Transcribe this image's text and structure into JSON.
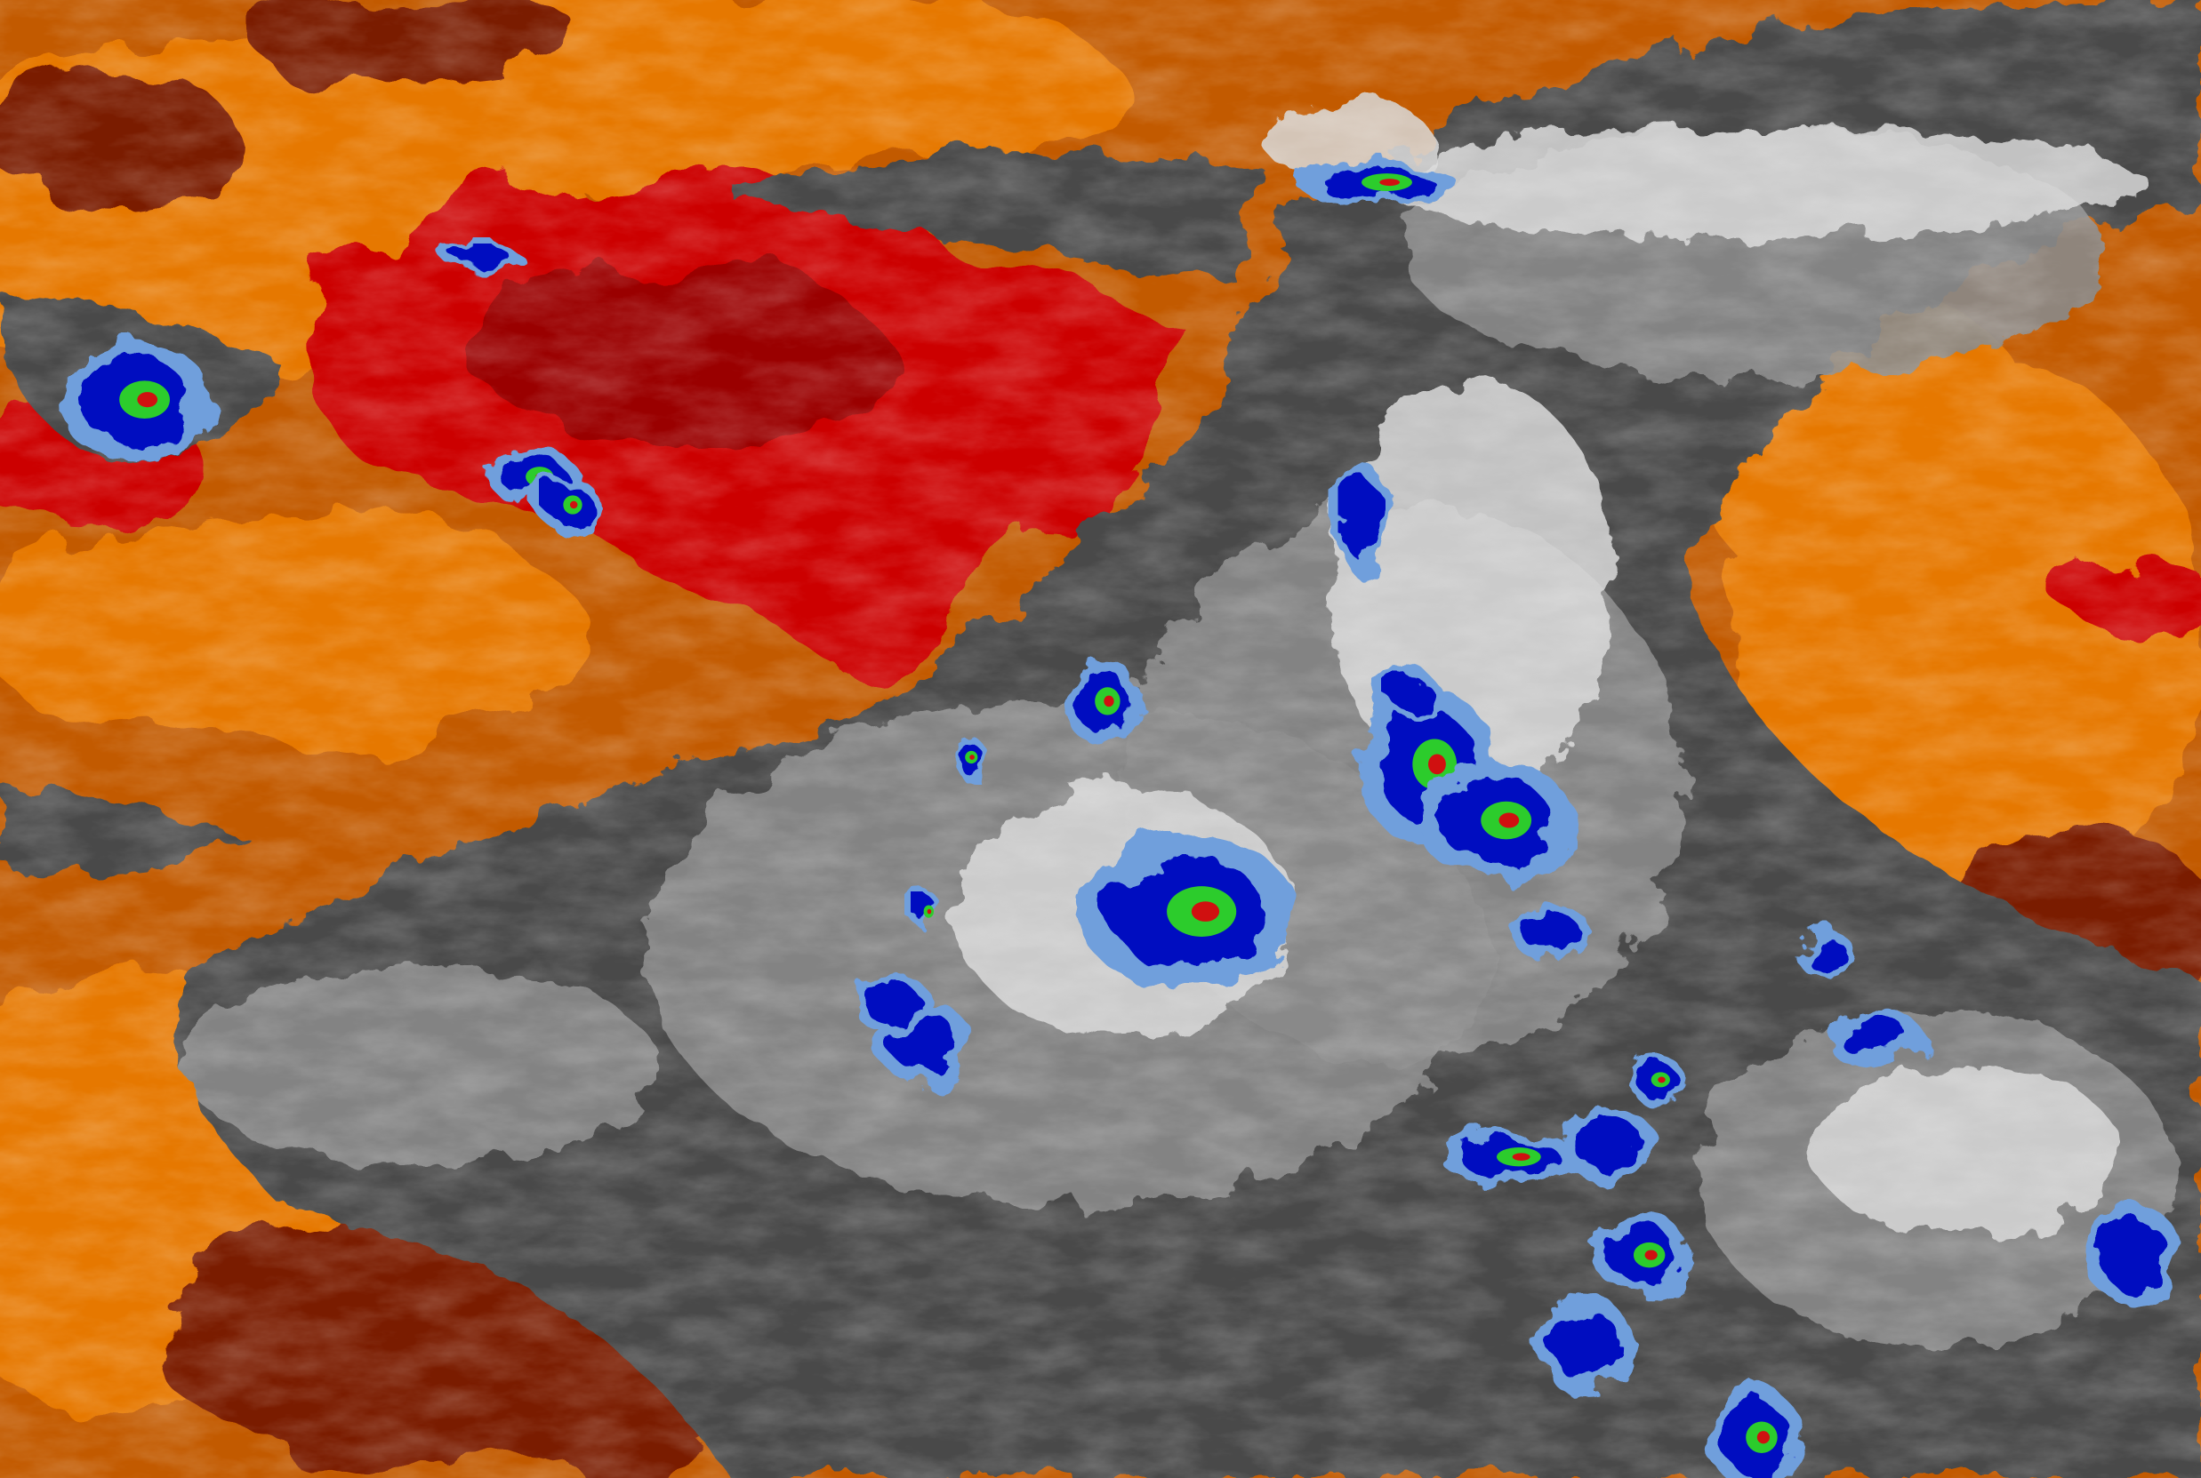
{
  "palette": {
    "warm_orange": "#e67800",
    "mid_orange": "#c25a00",
    "dark_rust": "#7a1a00",
    "red": "#cc0000",
    "deep_red": "#9a0000",
    "cloud_dark": "#4a4a4a",
    "cloud_mid": "#8a8a8a",
    "cloud_light": "#d8d8d8",
    "cell_lightblue": "#6f9fdc",
    "cell_blue": "#0010c0",
    "cell_green": "#2ccc2c",
    "cell_core": "#d01010"
  }
}
